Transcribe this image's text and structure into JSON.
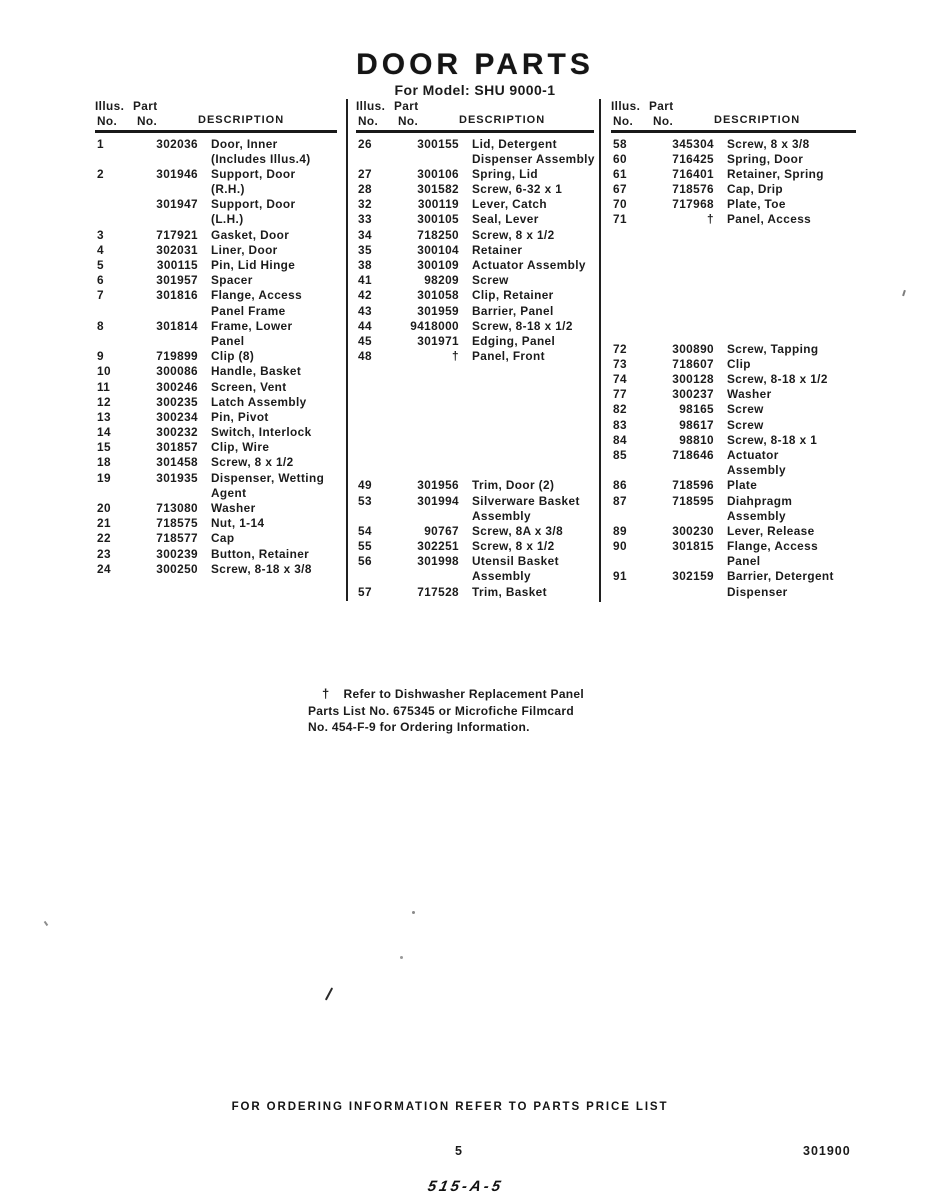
{
  "page": {
    "title": "DOOR PARTS",
    "subtitle": "For Model: SHU 9000-1"
  },
  "column_header": {
    "illus_label": "Illus.",
    "part_label": "Part",
    "no_label_1": "No.",
    "no_label_2": "No.",
    "description_label": "DESCRIPTION"
  },
  "columns": [
    {
      "rows": [
        {
          "no": "1",
          "part": "302036",
          "desc": "Door, Inner"
        },
        {
          "no": "",
          "part": "",
          "desc": "(Includes Illus.4)"
        },
        {
          "no": "2",
          "part": "301946",
          "desc": "Support, Door"
        },
        {
          "no": "",
          "part": "",
          "desc": "(R.H.)"
        },
        {
          "no": "",
          "part": "301947",
          "desc": "Support, Door"
        },
        {
          "no": "",
          "part": "",
          "desc": "(L.H.)"
        },
        {
          "no": "3",
          "part": "717921",
          "desc": "Gasket, Door"
        },
        {
          "no": "4",
          "part": "302031",
          "desc": "Liner, Door"
        },
        {
          "no": "5",
          "part": "300115",
          "desc": "Pin, Lid Hinge"
        },
        {
          "no": "6",
          "part": "301957",
          "desc": "Spacer"
        },
        {
          "no": "7",
          "part": "301816",
          "desc": "Flange, Access"
        },
        {
          "no": "",
          "part": "",
          "desc": "Panel Frame"
        },
        {
          "no": "8",
          "part": "301814",
          "desc": "Frame, Lower"
        },
        {
          "no": "",
          "part": "",
          "desc": "Panel"
        },
        {
          "no": "9",
          "part": "719899",
          "desc": "Clip (8)"
        },
        {
          "no": "10",
          "part": "300086",
          "desc": "Handle, Basket"
        },
        {
          "no": "11",
          "part": "300246",
          "desc": "Screen, Vent"
        },
        {
          "no": "12",
          "part": "300235",
          "desc": "Latch Assembly"
        },
        {
          "no": "13",
          "part": "300234",
          "desc": "Pin, Pivot"
        },
        {
          "no": "14",
          "part": "300232",
          "desc": "Switch, Interlock"
        },
        {
          "no": "15",
          "part": "301857",
          "desc": "Clip, Wire"
        },
        {
          "no": "18",
          "part": "301458",
          "desc": "Screw, 8 x 1/2"
        },
        {
          "no": "19",
          "part": "301935",
          "desc": "Dispenser, Wetting"
        },
        {
          "no": "",
          "part": "",
          "desc": "Agent"
        },
        {
          "no": "20",
          "part": "713080",
          "desc": "Washer"
        },
        {
          "no": "21",
          "part": "718575",
          "desc": "Nut, 1-14"
        },
        {
          "no": "22",
          "part": "718577",
          "desc": "Cap"
        },
        {
          "no": "23",
          "part": "300239",
          "desc": "Button, Retainer"
        },
        {
          "no": "24",
          "part": "300250",
          "desc": "Screw, 8-18 x 3/8"
        }
      ]
    },
    {
      "rows": [
        {
          "no": "26",
          "part": "300155",
          "desc": "Lid, Detergent"
        },
        {
          "no": "",
          "part": "",
          "desc": "Dispenser Assembly"
        },
        {
          "no": "27",
          "part": "300106",
          "desc": "Spring, Lid"
        },
        {
          "no": "28",
          "part": "301582",
          "desc": "Screw, 6-32 x 1"
        },
        {
          "no": "32",
          "part": "300119",
          "desc": "Lever, Catch"
        },
        {
          "no": "33",
          "part": "300105",
          "desc": "Seal, Lever"
        },
        {
          "no": "34",
          "part": "718250",
          "desc": "Screw, 8 x 1/2"
        },
        {
          "no": "35",
          "part": "300104",
          "desc": "Retainer"
        },
        {
          "no": "38",
          "part": "300109",
          "desc": "Actuator Assembly"
        },
        {
          "no": "41",
          "part": "98209",
          "desc": "Screw"
        },
        {
          "no": "42",
          "part": "301058",
          "desc": "Clip, Retainer"
        },
        {
          "no": "43",
          "part": "301959",
          "desc": "Barrier, Panel"
        },
        {
          "no": "44",
          "part": "9418000",
          "desc": "Screw, 8-18 x 1/2"
        },
        {
          "no": "45",
          "part": "301971",
          "desc": "Edging, Panel"
        },
        {
          "no": "48",
          "part": "†",
          "desc": "Panel, Front"
        },
        {
          "gap": 114
        },
        {
          "no": "49",
          "part": "301956",
          "desc": "Trim, Door (2)"
        },
        {
          "no": "53",
          "part": "301994",
          "desc": "Silverware Basket"
        },
        {
          "no": "",
          "part": "",
          "desc": "Assembly"
        },
        {
          "no": "54",
          "part": "90767",
          "desc": "Screw, 8A x 3/8"
        },
        {
          "no": "55",
          "part": "302251",
          "desc": "Screw, 8 x 1/2"
        },
        {
          "no": "56",
          "part": "301998",
          "desc": "Utensil Basket"
        },
        {
          "no": "",
          "part": "",
          "desc": "Assembly"
        },
        {
          "no": "57",
          "part": "717528",
          "desc": "Trim, Basket"
        }
      ]
    },
    {
      "rows": [
        {
          "no": "58",
          "part": "345304",
          "desc": "Screw, 8 x 3/8"
        },
        {
          "no": "60",
          "part": "716425",
          "desc": "Spring, Door"
        },
        {
          "no": "61",
          "part": "716401",
          "desc": "Retainer, Spring"
        },
        {
          "no": "67",
          "part": "718576",
          "desc": "Cap, Drip"
        },
        {
          "no": "70",
          "part": "717968",
          "desc": "Plate, Toe"
        },
        {
          "no": "71",
          "part": "†",
          "desc": "Panel, Access"
        },
        {
          "gap": 114
        },
        {
          "no": "72",
          "part": "300890",
          "desc": "Screw, Tapping"
        },
        {
          "no": "73",
          "part": "718607",
          "desc": "Clip"
        },
        {
          "no": "74",
          "part": "300128",
          "desc": "Screw, 8-18 x 1/2"
        },
        {
          "no": "77",
          "part": "300237",
          "desc": "Washer"
        },
        {
          "no": "82",
          "part": "98165",
          "desc": "Screw"
        },
        {
          "no": "83",
          "part": "98617",
          "desc": "Screw"
        },
        {
          "no": "84",
          "part": "98810",
          "desc": "Screw, 8-18 x 1"
        },
        {
          "no": "85",
          "part": "718646",
          "desc": "Actuator"
        },
        {
          "no": "",
          "part": "",
          "desc": "Assembly"
        },
        {
          "no": "86",
          "part": "718596",
          "desc": "Plate"
        },
        {
          "no": "87",
          "part": "718595",
          "desc": "Diahpragm"
        },
        {
          "no": "",
          "part": "",
          "desc": "Assembly"
        },
        {
          "no": "89",
          "part": "300230",
          "desc": "Lever, Release"
        },
        {
          "no": "90",
          "part": "301815",
          "desc": "Flange, Access"
        },
        {
          "no": "",
          "part": "",
          "desc": "Panel"
        },
        {
          "no": "91",
          "part": "302159",
          "desc": "Barrier, Detergent"
        },
        {
          "no": "",
          "part": "",
          "desc": "Dispenser"
        }
      ]
    }
  ],
  "footnote": {
    "symbol": "†",
    "line1": "Refer to Dishwasher Replacement Panel",
    "line2": "Parts List No. 675345 or Microfiche Filmcard",
    "line3": "No. 454-F-9 for Ordering Information."
  },
  "footer": {
    "notice": "FOR ORDERING INFORMATION REFER TO PARTS PRICE LIST",
    "page_number": "5",
    "doc_number": "301900",
    "handwritten_code": "515-A-5"
  }
}
